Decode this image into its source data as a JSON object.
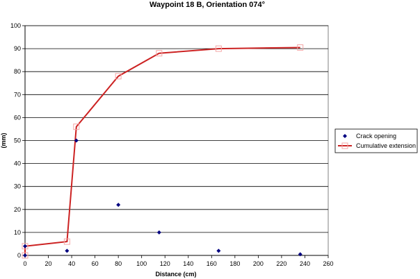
{
  "chart_data": {
    "type": "scatter",
    "title": "Waypoint 18 B, Orientation 074°",
    "xlabel": "Distance (cm)",
    "ylabel": "(mm)",
    "xlim": [
      0,
      260
    ],
    "ylim": [
      0,
      100
    ],
    "xticks": [
      0,
      20,
      40,
      60,
      80,
      100,
      120,
      140,
      160,
      180,
      200,
      220,
      240,
      260
    ],
    "yticks": [
      0,
      10,
      20,
      30,
      40,
      50,
      60,
      70,
      80,
      90,
      100
    ],
    "grid": "horizontal",
    "legend_position": "right",
    "series": [
      {
        "name": "Crack opening",
        "marker": "diamond",
        "color": "#000080",
        "points": [
          [
            0,
            0
          ],
          [
            0,
            4
          ],
          [
            36,
            2
          ],
          [
            44,
            50
          ],
          [
            80,
            22
          ],
          [
            115,
            10
          ],
          [
            166,
            2
          ],
          [
            236,
            0.5
          ]
        ]
      },
      {
        "name": "Cumulative extension",
        "marker": "square",
        "line": true,
        "color": "#cc2222",
        "marker_color": "#f4a6a6",
        "points": [
          [
            0,
            0
          ],
          [
            0,
            4
          ],
          [
            36,
            6
          ],
          [
            44,
            56
          ],
          [
            80,
            78
          ],
          [
            115,
            88
          ],
          [
            166,
            90
          ],
          [
            236,
            90.5
          ]
        ]
      }
    ]
  }
}
